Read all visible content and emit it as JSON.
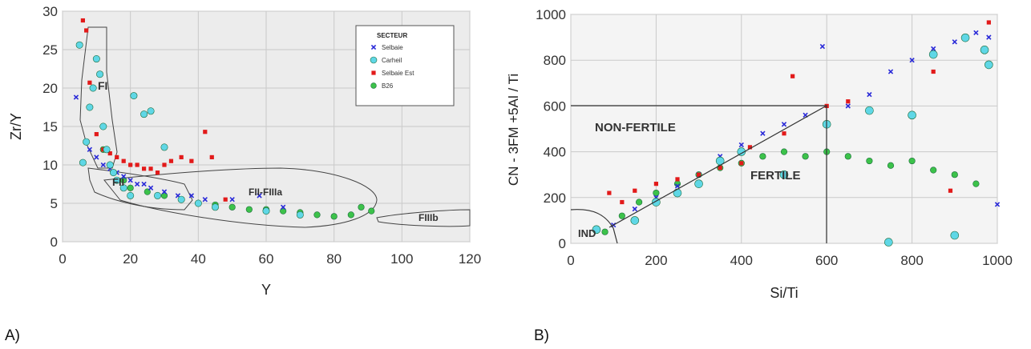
{
  "colors": {
    "selbaie": "#2a2ad8",
    "carheil": "#5fd7e6",
    "selbaie_est": "#e21a1a",
    "b26": "#3cc24a",
    "plot_bg_a": "#e9e9e9",
    "plot_bg_b": "#f2f2f2"
  },
  "chart_data": [
    {
      "panel_label": "A)",
      "type": "scatter",
      "xlabel": "Y",
      "ylabel": "Zr/Y",
      "xlim": [
        0,
        120
      ],
      "ylim": [
        0,
        30
      ],
      "x_ticks": [
        "0",
        "20",
        "40",
        "60",
        "80",
        "100",
        "120"
      ],
      "y_ticks": [
        "0",
        "5",
        "10",
        "15",
        "20",
        "25",
        "30"
      ],
      "grid": true,
      "legend": {
        "title": "SECTEUR",
        "placement": "top-right",
        "items": [
          "Selbaie",
          "Carheil",
          "Selbaie Est",
          "B26"
        ]
      },
      "fields": [
        "FI",
        "FII",
        "FII-FIIIa",
        "FIIIb"
      ],
      "series": [
        {
          "name": "Selbaie",
          "marker": "x",
          "x": [
            4,
            8,
            10,
            12,
            14,
            16,
            18,
            20,
            22,
            24,
            26,
            30,
            34,
            38,
            42,
            50,
            58,
            65
          ],
          "y": [
            18.8,
            12,
            11,
            10,
            9.5,
            9,
            8.5,
            8,
            7.5,
            7.5,
            7,
            6.5,
            6,
            6,
            5.5,
            5.5,
            6,
            4.5
          ]
        },
        {
          "name": "Carheil",
          "marker": "circle",
          "x": [
            5,
            6,
            7,
            8,
            9,
            10,
            11,
            12,
            13,
            14,
            15,
            16,
            18,
            20,
            21,
            24,
            26,
            28,
            30,
            35,
            40,
            45,
            60,
            70
          ],
          "y": [
            25.6,
            10.3,
            13,
            17.5,
            20,
            23.8,
            21.8,
            15,
            12,
            10,
            9,
            8,
            7,
            6,
            19,
            16.6,
            17,
            6,
            12.3,
            5.5,
            5,
            4.5,
            4,
            3.5
          ]
        },
        {
          "name": "Selbaie Est",
          "marker": "square",
          "x": [
            6,
            7,
            8,
            10,
            12,
            14,
            16,
            18,
            20,
            22,
            24,
            26,
            28,
            30,
            32,
            35,
            38,
            42,
            44,
            48
          ],
          "y": [
            28.8,
            27.5,
            20.7,
            14,
            12,
            11.5,
            11,
            10.5,
            10,
            10,
            9.5,
            9.5,
            9,
            10,
            10.5,
            11,
            10.5,
            14.3,
            11,
            5.5
          ]
        },
        {
          "name": "B26",
          "marker": "circle",
          "x": [
            12,
            15,
            18,
            20,
            25,
            30,
            35,
            40,
            45,
            50,
            55,
            60,
            65,
            70,
            75,
            80,
            85,
            88,
            91
          ],
          "y": [
            12,
            9,
            8,
            7,
            6.5,
            6,
            5.5,
            5,
            4.8,
            4.5,
            4.2,
            4.2,
            4,
            3.8,
            3.5,
            3.3,
            3.5,
            4.5,
            4
          ]
        }
      ]
    },
    {
      "panel_label": "B)",
      "type": "scatter",
      "xlabel": "Si/Ti",
      "ylabel": "CN - 3FM +5Al / Ti",
      "xlim": [
        0,
        1000
      ],
      "ylim": [
        0,
        1000
      ],
      "x_ticks": [
        "0",
        "200",
        "400",
        "600",
        "800",
        "1000"
      ],
      "y_ticks": [
        "0",
        "200",
        "400",
        "600",
        "800",
        "1000"
      ],
      "grid": true,
      "fields": [
        "NON-FERTILE",
        "FERTILE",
        "IND"
      ],
      "series": [
        {
          "name": "Selbaie",
          "marker": "x",
          "x": [
            100,
            150,
            200,
            250,
            300,
            350,
            400,
            450,
            500,
            550,
            590,
            650,
            700,
            750,
            800,
            850,
            900,
            950,
            980,
            1000
          ],
          "y": [
            80,
            150,
            200,
            250,
            300,
            380,
            430,
            480,
            520,
            560,
            860,
            600,
            650,
            750,
            800,
            850,
            880,
            920,
            900,
            170
          ]
        },
        {
          "name": "Carheil",
          "marker": "circle",
          "x": [
            60,
            150,
            200,
            250,
            300,
            350,
            400,
            500,
            600,
            700,
            745,
            800,
            850,
            900,
            925,
            970,
            980
          ],
          "y": [
            60,
            100,
            180,
            220,
            260,
            360,
            400,
            300,
            520,
            580,
            5,
            560,
            825,
            35,
            898,
            845,
            780
          ]
        },
        {
          "name": "Selbaie Est",
          "marker": "square",
          "x": [
            90,
            120,
            150,
            200,
            250,
            300,
            350,
            400,
            420,
            500,
            520,
            600,
            650,
            850,
            890,
            980
          ],
          "y": [
            220,
            180,
            230,
            260,
            280,
            300,
            330,
            350,
            420,
            480,
            730,
            600,
            620,
            750,
            230,
            965
          ]
        },
        {
          "name": "B26",
          "marker": "circle",
          "x": [
            80,
            120,
            160,
            200,
            250,
            300,
            350,
            400,
            450,
            500,
            550,
            600,
            650,
            700,
            750,
            800,
            850,
            900,
            950
          ],
          "y": [
            50,
            120,
            180,
            220,
            260,
            300,
            330,
            350,
            380,
            400,
            380,
            400,
            380,
            360,
            340,
            360,
            320,
            300,
            260
          ]
        }
      ]
    }
  ]
}
